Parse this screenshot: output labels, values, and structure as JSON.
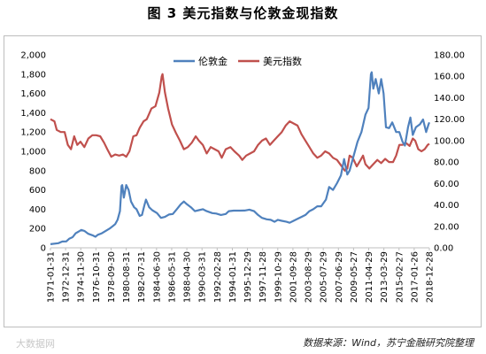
{
  "title": "图 3    美元指数与伦敦金现指数",
  "watermark": "大数据网",
  "source": "数据来源：Wind，苏宁金融研究院整理",
  "chart_data": {
    "type": "line",
    "legend_position": "top-center",
    "grid": false,
    "x_tick_labels": [
      "1971-01-31",
      "1972-12-31",
      "1974-11-30",
      "1976-10-31",
      "1978-09-30",
      "1980-08-31",
      "1982-07-31",
      "1984-06-30",
      "1986-05-31",
      "1988-04-30",
      "1990-03-31",
      "1992-02-28",
      "1994-01-31",
      "1995-12-29",
      "1997-11-28",
      "1999-10-29",
      "2001-09-28",
      "2003-08-29",
      "2005-07-29",
      "2007-06-29",
      "2009-05-27",
      "2011-04-29",
      "2013-03-29",
      "2015-02-27",
      "2017-01-26",
      "2018-12-28"
    ],
    "y_left": {
      "ticks": [
        "0",
        "200",
        "400",
        "600",
        "800",
        "1,000",
        "1,200",
        "1,400",
        "1,600",
        "1,800",
        "2,000"
      ],
      "ylim": [
        0,
        2000
      ]
    },
    "y_right": {
      "ticks": [
        "0.00",
        "20.00",
        "40.00",
        "60.00",
        "80.00",
        "100.00",
        "120.00",
        "140.00",
        "160.00",
        "180.00"
      ],
      "ylim": [
        0,
        180
      ]
    },
    "series": [
      {
        "name": "伦敦金",
        "axis": "left",
        "color": "#4f81bd",
        "points": [
          [
            1971.0,
            38
          ],
          [
            1972.0,
            48
          ],
          [
            1972.5,
            65
          ],
          [
            1973.0,
            66
          ],
          [
            1973.4,
            95
          ],
          [
            1973.8,
            110
          ],
          [
            1974.2,
            150
          ],
          [
            1974.6,
            170
          ],
          [
            1974.9,
            185
          ],
          [
            1975.3,
            175
          ],
          [
            1975.8,
            145
          ],
          [
            1976.3,
            130
          ],
          [
            1976.7,
            115
          ],
          [
            1977.0,
            135
          ],
          [
            1977.5,
            150
          ],
          [
            1978.0,
            175
          ],
          [
            1978.5,
            200
          ],
          [
            1978.9,
            225
          ],
          [
            1979.2,
            245
          ],
          [
            1979.5,
            290
          ],
          [
            1979.8,
            380
          ],
          [
            1980.0,
            640
          ],
          [
            1980.1,
            650
          ],
          [
            1980.3,
            520
          ],
          [
            1980.6,
            650
          ],
          [
            1980.9,
            600
          ],
          [
            1981.2,
            480
          ],
          [
            1981.6,
            420
          ],
          [
            1981.9,
            400
          ],
          [
            1982.3,
            330
          ],
          [
            1982.6,
            340
          ],
          [
            1982.9,
            440
          ],
          [
            1983.1,
            500
          ],
          [
            1983.5,
            420
          ],
          [
            1983.9,
            390
          ],
          [
            1984.5,
            360
          ],
          [
            1985.0,
            310
          ],
          [
            1985.5,
            320
          ],
          [
            1986.0,
            345
          ],
          [
            1986.5,
            350
          ],
          [
            1987.0,
            400
          ],
          [
            1987.5,
            450
          ],
          [
            1987.9,
            480
          ],
          [
            1988.3,
            450
          ],
          [
            1988.8,
            420
          ],
          [
            1989.3,
            380
          ],
          [
            1989.8,
            390
          ],
          [
            1990.3,
            400
          ],
          [
            1990.8,
            380
          ],
          [
            1991.5,
            360
          ],
          [
            1992.0,
            355
          ],
          [
            1992.6,
            340
          ],
          [
            1993.2,
            350
          ],
          [
            1993.6,
            380
          ],
          [
            1994.2,
            385
          ],
          [
            1995.0,
            385
          ],
          [
            1995.6,
            386
          ],
          [
            1996.2,
            395
          ],
          [
            1996.8,
            380
          ],
          [
            1997.3,
            340
          ],
          [
            1997.8,
            310
          ],
          [
            1998.4,
            295
          ],
          [
            1998.9,
            290
          ],
          [
            1999.4,
            270
          ],
          [
            1999.8,
            290
          ],
          [
            2000.3,
            280
          ],
          [
            2000.9,
            270
          ],
          [
            2001.3,
            260
          ],
          [
            2001.8,
            280
          ],
          [
            2002.3,
            300
          ],
          [
            2002.8,
            320
          ],
          [
            2003.3,
            340
          ],
          [
            2003.8,
            380
          ],
          [
            2004.3,
            400
          ],
          [
            2004.8,
            430
          ],
          [
            2005.3,
            430
          ],
          [
            2005.9,
            500
          ],
          [
            2006.3,
            630
          ],
          [
            2006.8,
            600
          ],
          [
            2007.3,
            670
          ],
          [
            2007.8,
            750
          ],
          [
            2008.2,
            920
          ],
          [
            2008.6,
            760
          ],
          [
            2008.9,
            800
          ],
          [
            2009.3,
            920
          ],
          [
            2009.9,
            1100
          ],
          [
            2010.4,
            1200
          ],
          [
            2010.9,
            1380
          ],
          [
            2011.3,
            1450
          ],
          [
            2011.6,
            1800
          ],
          [
            2011.7,
            1820
          ],
          [
            2011.9,
            1650
          ],
          [
            2012.2,
            1750
          ],
          [
            2012.6,
            1600
          ],
          [
            2012.9,
            1750
          ],
          [
            2013.2,
            1600
          ],
          [
            2013.5,
            1250
          ],
          [
            2013.9,
            1240
          ],
          [
            2014.3,
            1300
          ],
          [
            2014.8,
            1200
          ],
          [
            2015.2,
            1200
          ],
          [
            2015.6,
            1100
          ],
          [
            2015.9,
            1060
          ],
          [
            2016.3,
            1250
          ],
          [
            2016.6,
            1350
          ],
          [
            2016.9,
            1170
          ],
          [
            2017.3,
            1250
          ],
          [
            2017.8,
            1280
          ],
          [
            2018.2,
            1330
          ],
          [
            2018.6,
            1200
          ],
          [
            2018.9,
            1280
          ],
          [
            2019.0,
            1300
          ]
        ]
      },
      {
        "name": "美元指数",
        "axis": "right",
        "color": "#c0504d",
        "points": [
          [
            1971.0,
            120
          ],
          [
            1971.5,
            118
          ],
          [
            1971.8,
            110
          ],
          [
            1972.3,
            108
          ],
          [
            1972.8,
            108
          ],
          [
            1973.2,
            96
          ],
          [
            1973.6,
            92
          ],
          [
            1974.0,
            104
          ],
          [
            1974.4,
            96
          ],
          [
            1974.8,
            99
          ],
          [
            1975.3,
            94
          ],
          [
            1975.8,
            102
          ],
          [
            1976.3,
            105
          ],
          [
            1976.8,
            105
          ],
          [
            1977.3,
            104
          ],
          [
            1977.8,
            98
          ],
          [
            1978.2,
            92
          ],
          [
            1978.7,
            85
          ],
          [
            1979.2,
            87
          ],
          [
            1979.7,
            86
          ],
          [
            1980.2,
            87
          ],
          [
            1980.6,
            85
          ],
          [
            1981.0,
            90
          ],
          [
            1981.5,
            104
          ],
          [
            1981.9,
            105
          ],
          [
            1982.3,
            112
          ],
          [
            1982.8,
            118
          ],
          [
            1983.2,
            120
          ],
          [
            1983.8,
            130
          ],
          [
            1984.3,
            132
          ],
          [
            1984.8,
            145
          ],
          [
            1985.1,
            160
          ],
          [
            1985.2,
            162
          ],
          [
            1985.5,
            145
          ],
          [
            1985.9,
            130
          ],
          [
            1986.4,
            115
          ],
          [
            1986.9,
            107
          ],
          [
            1987.4,
            100
          ],
          [
            1987.9,
            92
          ],
          [
            1988.4,
            94
          ],
          [
            1988.9,
            98
          ],
          [
            1989.4,
            104
          ],
          [
            1989.8,
            100
          ],
          [
            1990.3,
            96
          ],
          [
            1990.8,
            88
          ],
          [
            1991.3,
            94
          ],
          [
            1991.8,
            92
          ],
          [
            1992.3,
            90
          ],
          [
            1992.7,
            84
          ],
          [
            1993.2,
            92
          ],
          [
            1993.8,
            94
          ],
          [
            1994.3,
            90
          ],
          [
            1994.9,
            86
          ],
          [
            1995.3,
            82
          ],
          [
            1995.8,
            86
          ],
          [
            1996.3,
            88
          ],
          [
            1996.8,
            90
          ],
          [
            1997.3,
            96
          ],
          [
            1997.8,
            100
          ],
          [
            1998.3,
            102
          ],
          [
            1998.8,
            96
          ],
          [
            1999.3,
            100
          ],
          [
            1999.8,
            104
          ],
          [
            2000.3,
            108
          ],
          [
            2000.8,
            114
          ],
          [
            2001.3,
            118
          ],
          [
            2001.8,
            116
          ],
          [
            2002.3,
            114
          ],
          [
            2002.8,
            106
          ],
          [
            2003.3,
            100
          ],
          [
            2003.8,
            94
          ],
          [
            2004.3,
            88
          ],
          [
            2004.8,
            84
          ],
          [
            2005.3,
            86
          ],
          [
            2005.8,
            90
          ],
          [
            2006.3,
            88
          ],
          [
            2006.8,
            84
          ],
          [
            2007.3,
            82
          ],
          [
            2007.8,
            77
          ],
          [
            2008.3,
            72
          ],
          [
            2008.6,
            74
          ],
          [
            2008.9,
            86
          ],
          [
            2009.3,
            84
          ],
          [
            2009.8,
            76
          ],
          [
            2010.3,
            82
          ],
          [
            2010.6,
            86
          ],
          [
            2010.9,
            78
          ],
          [
            2011.4,
            74
          ],
          [
            2011.9,
            78
          ],
          [
            2012.4,
            82
          ],
          [
            2012.9,
            79
          ],
          [
            2013.4,
            83
          ],
          [
            2013.9,
            80
          ],
          [
            2014.4,
            80
          ],
          [
            2014.8,
            86
          ],
          [
            2015.2,
            96
          ],
          [
            2015.6,
            96
          ],
          [
            2016.0,
            98
          ],
          [
            2016.5,
            95
          ],
          [
            2016.9,
            102
          ],
          [
            2017.2,
            100
          ],
          [
            2017.6,
            92
          ],
          [
            2018.0,
            90
          ],
          [
            2018.4,
            92
          ],
          [
            2018.8,
            96
          ],
          [
            2019.0,
            97
          ]
        ]
      }
    ]
  }
}
